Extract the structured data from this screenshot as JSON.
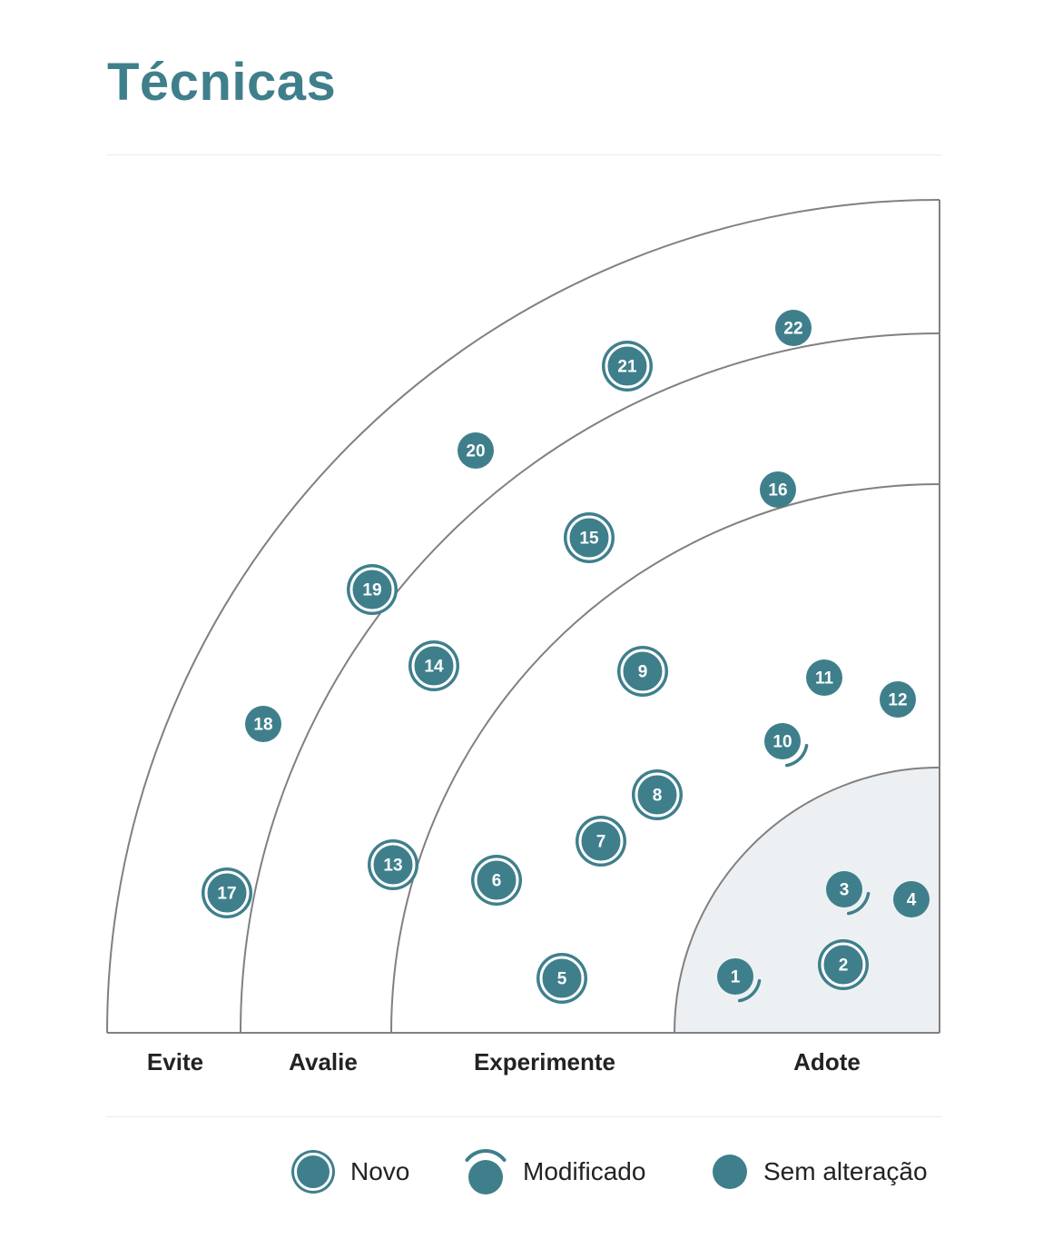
{
  "title": "Técnicas",
  "colors": {
    "accent": "#3f7f8c",
    "adopt_fill": "#edf0f3",
    "ring_stroke": "#808080"
  },
  "rings": [
    {
      "id": "evite",
      "label": "Evite"
    },
    {
      "id": "avalie",
      "label": "Avalie"
    },
    {
      "id": "experimente",
      "label": "Experimente"
    },
    {
      "id": "adote",
      "label": "Adote"
    }
  ],
  "blips": [
    {
      "number": "1",
      "status": "modified"
    },
    {
      "number": "2",
      "status": "new"
    },
    {
      "number": "3",
      "status": "modified"
    },
    {
      "number": "4",
      "status": "unchanged"
    },
    {
      "number": "5",
      "status": "new"
    },
    {
      "number": "6",
      "status": "new"
    },
    {
      "number": "7",
      "status": "new"
    },
    {
      "number": "8",
      "status": "new"
    },
    {
      "number": "9",
      "status": "new"
    },
    {
      "number": "10",
      "status": "modified"
    },
    {
      "number": "11",
      "status": "unchanged"
    },
    {
      "number": "12",
      "status": "unchanged"
    },
    {
      "number": "13",
      "status": "new"
    },
    {
      "number": "14",
      "status": "new"
    },
    {
      "number": "15",
      "status": "new"
    },
    {
      "number": "16",
      "status": "unchanged"
    },
    {
      "number": "17",
      "status": "new"
    },
    {
      "number": "18",
      "status": "unchanged"
    },
    {
      "number": "19",
      "status": "new"
    },
    {
      "number": "20",
      "status": "unchanged"
    },
    {
      "number": "21",
      "status": "new"
    },
    {
      "number": "22",
      "status": "unchanged"
    }
  ],
  "legend": [
    {
      "status": "new",
      "label": "Novo",
      "icon": "new-blip-icon"
    },
    {
      "status": "modified",
      "label": "Modificado",
      "icon": "modified-blip-icon"
    },
    {
      "status": "unchanged",
      "label": "Sem alteração",
      "icon": "unchanged-blip-icon"
    }
  ]
}
